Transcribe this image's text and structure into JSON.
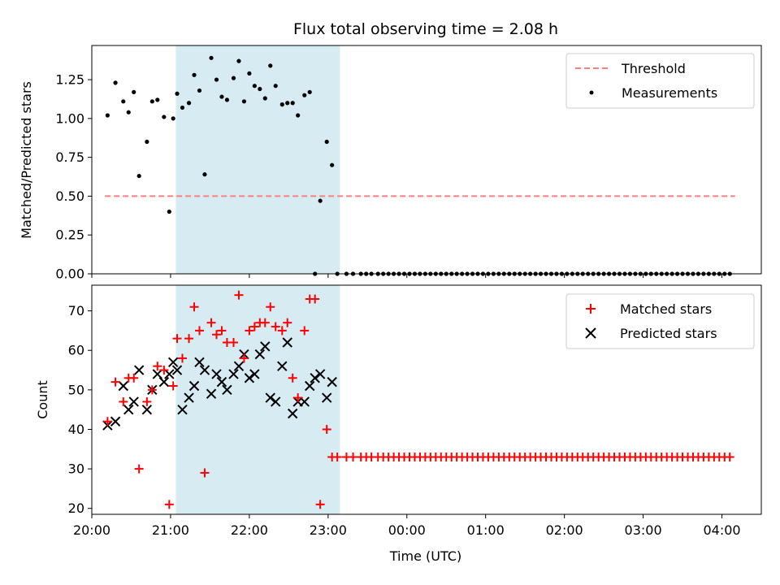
{
  "chart_data": [
    {
      "type": "scatter",
      "title": "Flux total observing time = 2.08 h",
      "ylabel": "Matched/Predicted stars",
      "xlabel": "",
      "xlim": [
        "20:00",
        "04:30"
      ],
      "ylim": [
        0,
        1.47
      ],
      "yticks": [
        0.0,
        0.25,
        0.5,
        0.75,
        1.0,
        1.25
      ],
      "ytick_labels": [
        "0.00",
        "0.25",
        "0.50",
        "0.75",
        "1.00",
        "1.25"
      ],
      "grid": false,
      "legend_position": "top-right",
      "shaded_interval": {
        "start": "21:04",
        "end": "23:09",
        "color": "#add8e6"
      },
      "threshold": {
        "name": "Threshold",
        "value": 0.5,
        "x_start": "20:10",
        "x_end": "04:10",
        "color": "#ff7f7f",
        "style": "dashed"
      },
      "series": [
        {
          "name": "Measurements",
          "color": "#000000",
          "marker": "dot",
          "x": [
            "20:12",
            "20:18",
            "20:24",
            "20:28",
            "20:32",
            "20:36",
            "20:42",
            "20:46",
            "20:50",
            "20:55",
            "20:59",
            "21:02",
            "21:05",
            "21:09",
            "21:14",
            "21:18",
            "21:22",
            "21:26",
            "21:31",
            "21:35",
            "21:39",
            "21:43",
            "21:48",
            "21:52",
            "21:56",
            "22:00",
            "22:04",
            "22:08",
            "22:12",
            "22:16",
            "22:20",
            "22:25",
            "22:29",
            "22:33",
            "22:37",
            "22:42",
            "22:46",
            "22:50",
            "22:54",
            "22:59",
            "23:03",
            "23:07",
            "23:14",
            "23:19",
            "23:25",
            "23:29",
            "23:33",
            "23:38",
            "23:42",
            "23:46",
            "23:50",
            "23:54",
            "23:58",
            "00:02",
            "00:06",
            "00:10",
            "00:14",
            "00:18",
            "00:22",
            "00:26",
            "00:30",
            "00:34",
            "00:38",
            "00:42",
            "00:46",
            "00:50",
            "00:54",
            "00:58",
            "01:02",
            "01:06",
            "01:10",
            "01:14",
            "01:18",
            "01:22",
            "01:26",
            "01:30",
            "01:34",
            "01:38",
            "01:42",
            "01:46",
            "01:50",
            "01:54",
            "01:58",
            "02:02",
            "02:06",
            "02:10",
            "02:14",
            "02:18",
            "02:22",
            "02:26",
            "02:30",
            "02:34",
            "02:38",
            "02:42",
            "02:46",
            "02:50",
            "02:54",
            "02:58",
            "03:02",
            "03:06",
            "03:10",
            "03:14",
            "03:18",
            "03:22",
            "03:26",
            "03:30",
            "03:34",
            "03:38",
            "03:42",
            "03:46",
            "03:50",
            "03:54",
            "03:58",
            "04:02",
            "04:06"
          ],
          "y": [
            1.02,
            1.23,
            1.11,
            1.04,
            1.17,
            0.63,
            0.85,
            1.11,
            1.12,
            1.01,
            0.4,
            1.0,
            1.16,
            1.07,
            1.1,
            1.28,
            1.18,
            0.64,
            1.39,
            1.25,
            1.14,
            1.12,
            1.26,
            1.37,
            1.11,
            1.29,
            1.21,
            1.19,
            1.13,
            1.34,
            1.21,
            1.09,
            1.1,
            1.1,
            1.02,
            1.15,
            1.17,
            0.0,
            0.47,
            0.85,
            0.7,
            0.0,
            0.0,
            0.0,
            0.0,
            0.0,
            0.0,
            0.0,
            0.0,
            0.0,
            0.0,
            0.0,
            0.0,
            0.0,
            0.0,
            0.0,
            0.0,
            0.0,
            0.0,
            0.0,
            0.0,
            0.0,
            0.0,
            0.0,
            0.0,
            0.0,
            0.0,
            0.0,
            0.0,
            0.0,
            0.0,
            0.0,
            0.0,
            0.0,
            0.0,
            0.0,
            0.0,
            0.0,
            0.0,
            0.0,
            0.0,
            0.0,
            0.0,
            0.0,
            0.0,
            0.0,
            0.0,
            0.0,
            0.0,
            0.0,
            0.0,
            0.0,
            0.0,
            0.0,
            0.0,
            0.0,
            0.0,
            0.0,
            0.0,
            0.0,
            0.0,
            0.0,
            0.0,
            0.0,
            0.0,
            0.0,
            0.0,
            0.0,
            0.0,
            0.0,
            0.0,
            0.0,
            0.0,
            0.0,
            0.0
          ]
        }
      ]
    },
    {
      "type": "scatter",
      "title": "",
      "xlabel": "Time (UTC)",
      "ylabel": "Count",
      "xlim": [
        "20:00",
        "04:30"
      ],
      "ylim": [
        18.5,
        76.5
      ],
      "xticks": [
        "20:00",
        "21:00",
        "22:00",
        "23:00",
        "00:00",
        "01:00",
        "02:00",
        "03:00",
        "04:00"
      ],
      "yticks": [
        20,
        30,
        40,
        50,
        60,
        70
      ],
      "ytick_labels": [
        "20",
        "30",
        "40",
        "50",
        "60",
        "70"
      ],
      "grid": false,
      "legend_position": "top-right",
      "shaded_interval": {
        "start": "21:04",
        "end": "23:09",
        "color": "#add8e6"
      },
      "series": [
        {
          "name": "Matched stars",
          "color": "#ff0000",
          "marker": "plus",
          "x": [
            "20:12",
            "20:18",
            "20:24",
            "20:28",
            "20:32",
            "20:36",
            "20:42",
            "20:46",
            "20:50",
            "20:55",
            "20:59",
            "21:02",
            "21:05",
            "21:09",
            "21:14",
            "21:18",
            "21:22",
            "21:26",
            "21:31",
            "21:35",
            "21:39",
            "21:43",
            "21:48",
            "21:52",
            "21:56",
            "22:00",
            "22:04",
            "22:08",
            "22:12",
            "22:16",
            "22:20",
            "22:25",
            "22:29",
            "22:33",
            "22:37",
            "22:42",
            "22:46",
            "22:50",
            "22:54",
            "22:59",
            "23:03",
            "23:07",
            "23:14",
            "23:19",
            "23:25",
            "23:29",
            "23:33",
            "23:38",
            "23:42",
            "23:46",
            "23:50",
            "23:54",
            "23:58",
            "00:02",
            "00:06",
            "00:10",
            "00:14",
            "00:18",
            "00:22",
            "00:26",
            "00:30",
            "00:34",
            "00:38",
            "00:42",
            "00:46",
            "00:50",
            "00:54",
            "00:58",
            "01:02",
            "01:06",
            "01:10",
            "01:14",
            "01:18",
            "01:22",
            "01:26",
            "01:30",
            "01:34",
            "01:38",
            "01:42",
            "01:46",
            "01:50",
            "01:54",
            "01:58",
            "02:02",
            "02:06",
            "02:10",
            "02:14",
            "02:18",
            "02:22",
            "02:26",
            "02:30",
            "02:34",
            "02:38",
            "02:42",
            "02:46",
            "02:50",
            "02:54",
            "02:58",
            "03:02",
            "03:06",
            "03:10",
            "03:14",
            "03:18",
            "03:22",
            "03:26",
            "03:30",
            "03:34",
            "03:38",
            "03:42",
            "03:46",
            "03:50",
            "03:54",
            "03:58",
            "04:02",
            "04:06"
          ],
          "y": [
            42,
            52,
            47,
            53,
            53,
            30,
            47,
            50,
            56,
            55,
            21,
            51,
            63,
            58,
            63,
            71,
            65,
            29,
            67,
            64,
            65,
            62,
            62,
            74,
            58,
            65,
            66,
            67,
            67,
            71,
            66,
            65,
            67,
            53,
            48,
            65,
            73,
            73,
            21,
            40,
            33,
            33,
            33,
            33,
            33,
            33,
            33,
            33,
            33,
            33,
            33,
            33,
            33,
            33,
            33,
            33,
            33,
            33,
            33,
            33,
            33,
            33,
            33,
            33,
            33,
            33,
            33,
            33,
            33,
            33,
            33,
            33,
            33,
            33,
            33,
            33,
            33,
            33,
            33,
            33,
            33,
            33,
            33,
            33,
            33,
            33,
            33,
            33,
            33,
            33,
            33,
            33,
            33,
            33,
            33,
            33,
            33,
            33,
            33,
            33,
            33,
            33,
            33,
            33,
            33,
            33,
            33,
            33,
            33,
            33,
            33,
            33,
            33,
            33,
            33
          ]
        },
        {
          "name": "Predicted stars",
          "color": "#000000",
          "marker": "x",
          "x": [
            "20:12",
            "20:18",
            "20:24",
            "20:28",
            "20:32",
            "20:36",
            "20:42",
            "20:46",
            "20:50",
            "20:55",
            "20:59",
            "21:02",
            "21:05",
            "21:09",
            "21:14",
            "21:18",
            "21:22",
            "21:26",
            "21:31",
            "21:35",
            "21:39",
            "21:43",
            "21:48",
            "21:52",
            "21:56",
            "22:00",
            "22:04",
            "22:08",
            "22:12",
            "22:16",
            "22:20",
            "22:25",
            "22:29",
            "22:33",
            "22:37",
            "22:42",
            "22:46",
            "22:50",
            "22:54",
            "22:59",
            "23:03"
          ],
          "y": [
            41,
            42,
            51,
            45,
            47,
            55,
            45,
            50,
            54,
            52,
            54,
            57,
            55,
            45,
            48,
            51,
            57,
            55,
            49,
            54,
            52,
            50,
            54,
            56,
            59,
            53,
            54,
            59,
            61,
            48,
            47,
            56,
            62,
            44,
            47,
            47,
            51,
            53,
            54,
            48,
            52
          ]
        }
      ]
    }
  ]
}
